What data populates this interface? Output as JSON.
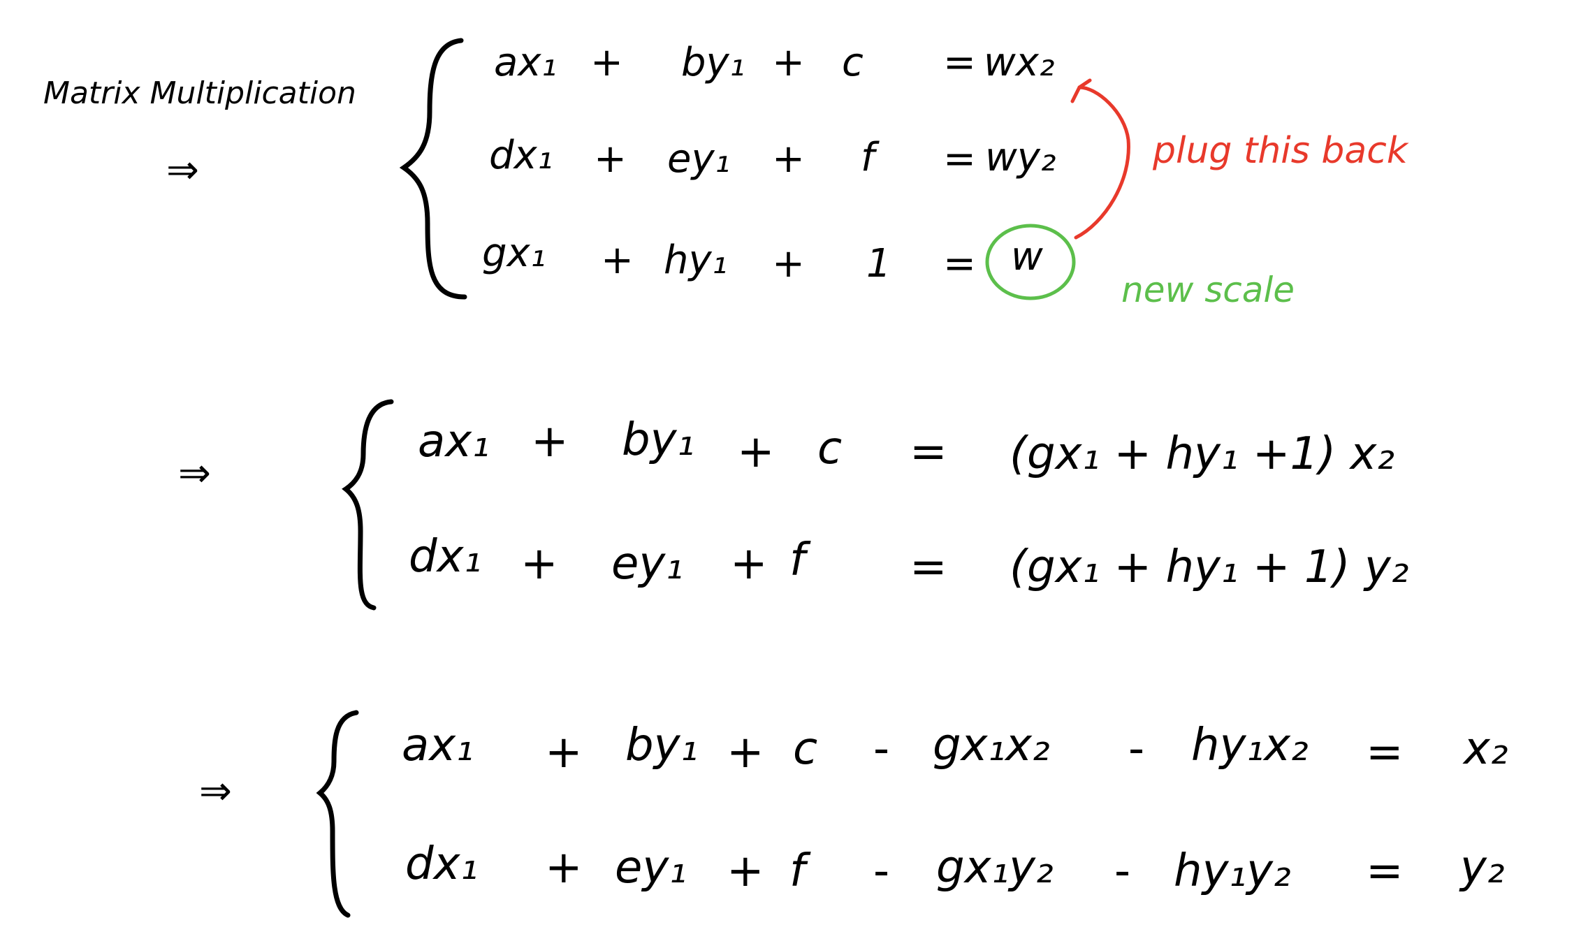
{
  "title": "Matrix Multiplication",
  "arrow_symbol": "⇒",
  "block1": {
    "rows": [
      [
        "ax₁",
        "+",
        "by₁",
        "+",
        "c",
        "=",
        "wx₂"
      ],
      [
        "dx₁",
        "+",
        "ey₁",
        "+",
        "f",
        "=",
        "wy₂"
      ],
      [
        "gx₁",
        "+",
        "hy₁",
        "+",
        "1",
        "=",
        "w"
      ]
    ]
  },
  "annotation_plug": "plug this back",
  "annotation_scale": "new scale",
  "block2": {
    "rows": [
      [
        "ax₁",
        "+",
        "by₁",
        "+",
        "c",
        "=",
        "(gx₁ + hy₁ +1) x₂"
      ],
      [
        "dx₁",
        "+",
        "ey₁",
        "+",
        "f",
        "=",
        "(gx₁ + hy₁ + 1) y₂"
      ]
    ]
  },
  "block3": {
    "rows": [
      [
        "ax₁",
        "+",
        "by₁",
        "+",
        "c",
        "-",
        "gx₁x₂",
        "-",
        "hy₁x₂",
        "=",
        "x₂"
      ],
      [
        "dx₁",
        "+",
        "ey₁",
        "+",
        "f",
        "-",
        "gx₁y₂",
        "-",
        "hy₁y₂",
        "=",
        "y₂"
      ]
    ]
  },
  "colors": {
    "ink": "#000000",
    "annotation_red": "#e8392b",
    "annotation_green": "#5cbf4b"
  }
}
